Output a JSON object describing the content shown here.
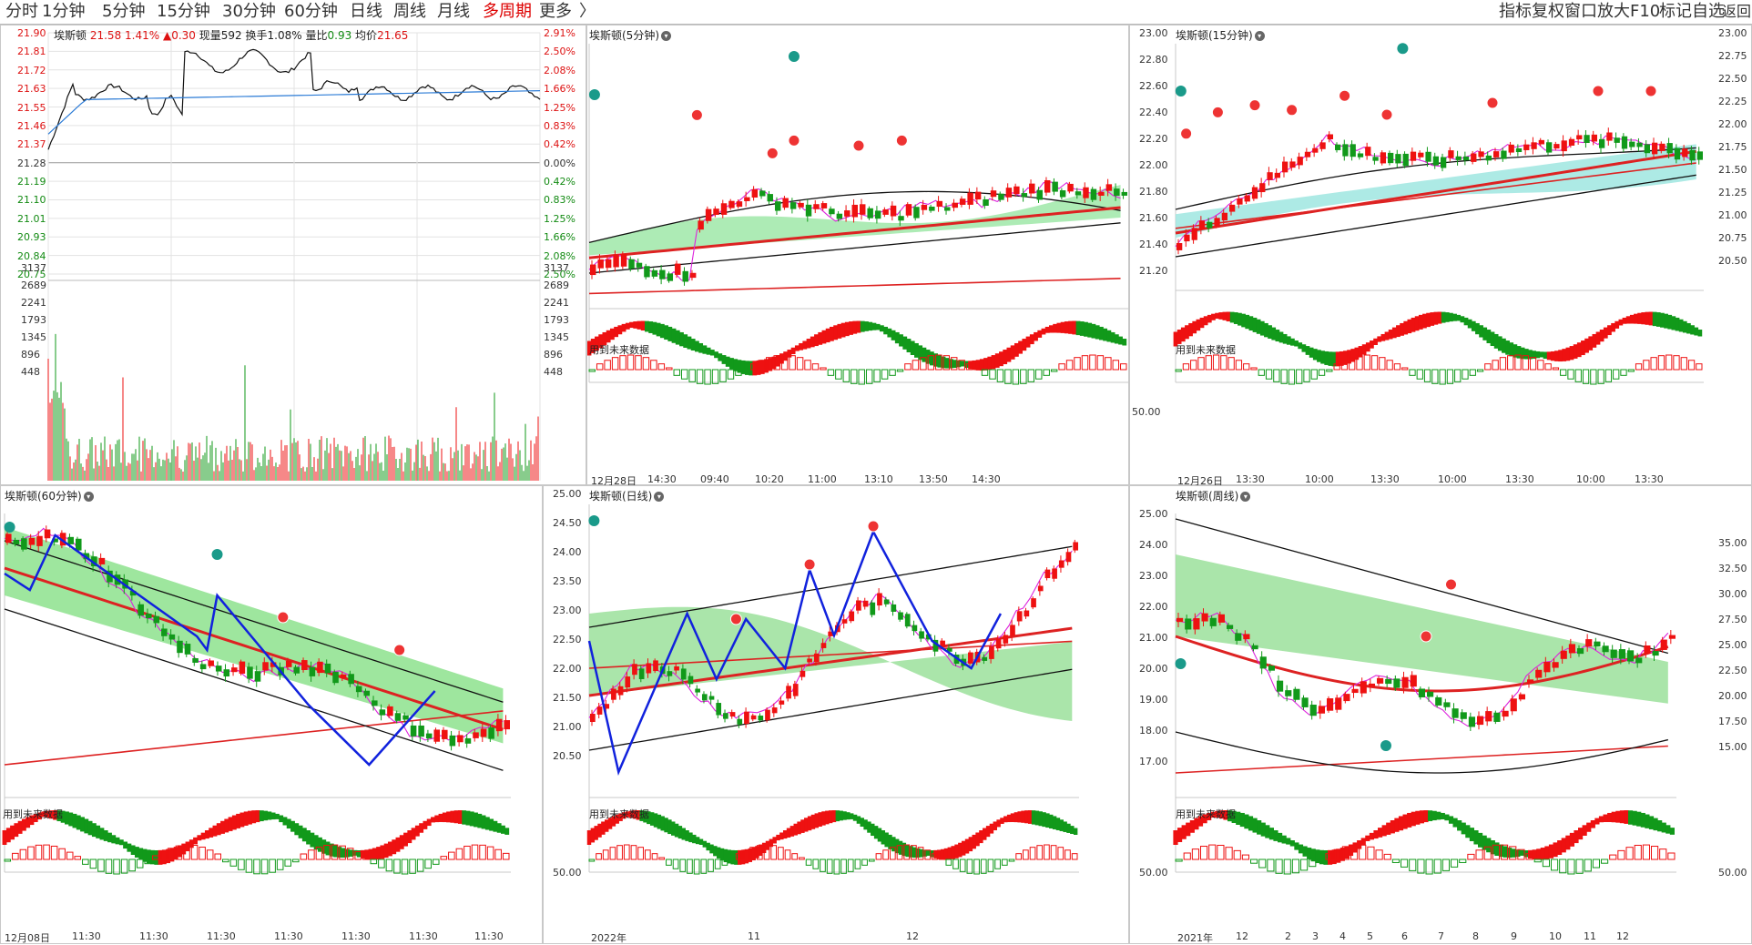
{
  "tabs": [
    {
      "label": "分时",
      "active": false
    },
    {
      "label": "1分钟",
      "active": false
    },
    {
      "label": "5分钟",
      "active": false
    },
    {
      "label": "15分钟",
      "active": false
    },
    {
      "label": "30分钟",
      "active": false
    },
    {
      "label": "60分钟",
      "active": false
    },
    {
      "label": "日线",
      "active": false
    },
    {
      "label": "周线",
      "active": false
    },
    {
      "label": "月线",
      "active": false
    },
    {
      "label": "多周期",
      "active": true
    },
    {
      "label": "更多",
      "active": false
    }
  ],
  "more_arrow": "〉",
  "tools": [
    "指标",
    "复权",
    "窗口",
    "放大",
    "F10",
    "标记",
    "自选",
    "返回"
  ],
  "intraday": {
    "name": "埃斯顿",
    "price": "21.58",
    "change_pct": "1.41%",
    "change": "▲0.30",
    "vol_label": "现量",
    "vol": "592",
    "turnover_label": "换手",
    "turnover": "1.08%",
    "ratio_label": "量比",
    "ratio": "0.93",
    "avg_label": "均价",
    "avg": "21.65",
    "price_ticks": [
      "21.90",
      "21.81",
      "21.72",
      "21.63",
      "21.55",
      "21.46",
      "21.37",
      "21.28",
      "21.19",
      "21.10",
      "21.01",
      "20.93",
      "20.84",
      "20.75"
    ],
    "pct_ticks": [
      "2.91%",
      "2.50%",
      "2.08%",
      "1.66%",
      "1.25%",
      "0.83%",
      "0.42%",
      "0.00%",
      "0.42%",
      "0.83%",
      "1.25%",
      "1.66%",
      "2.08%",
      "2.50%"
    ],
    "vol_ticks": [
      "3137",
      "2689",
      "2241",
      "1793",
      "1345",
      "896",
      "448"
    ]
  },
  "panels": {
    "m5": {
      "title": "埃斯顿(5分钟)",
      "note": "用到未来数据",
      "x_labels": [
        "12月28日",
        "14:30",
        "09:40",
        "10:20",
        "11:00",
        "13:10",
        "13:50",
        "14:30"
      ]
    },
    "m15": {
      "title": "埃斯顿(15分钟)",
      "note": "用到未来数据",
      "y_ticks": [
        "23.00",
        "22.80",
        "22.60",
        "22.40",
        "22.20",
        "22.00",
        "21.80",
        "21.60",
        "21.40",
        "21.20"
      ],
      "ind_tick": "50.00",
      "x_labels": [
        "12月26日",
        "13:30",
        "10:00",
        "13:30",
        "10:00",
        "13:30",
        "10:00",
        "13:30"
      ]
    },
    "right_axis": {
      "ticks": [
        "23.00",
        "22.75",
        "22.50",
        "22.25",
        "22.00",
        "21.75",
        "21.50",
        "21.25",
        "21.00",
        "20.75",
        "20.50"
      ]
    },
    "m60": {
      "title": "埃斯顿(60分钟)",
      "note": "用到未来数据",
      "x_labels": [
        "12月08日",
        "11:30",
        "11:30",
        "11:30",
        "11:30",
        "11:30",
        "11:30",
        "11:30"
      ]
    },
    "day": {
      "title": "埃斯顿(日线)",
      "note": "用到未来数据",
      "y_ticks": [
        "25.00",
        "24.50",
        "24.00",
        "23.50",
        "23.00",
        "22.50",
        "22.00",
        "21.50",
        "21.00",
        "20.50"
      ],
      "ind_tick": "50.00",
      "x_labels": [
        "2022年",
        "11",
        "12"
      ]
    },
    "week": {
      "title": "埃斯顿(周线)",
      "note": "用到未来数据",
      "y_ticks": [
        "25.00",
        "24.00",
        "23.00",
        "22.00",
        "21.00",
        "20.00",
        "19.00",
        "18.00",
        "17.00"
      ],
      "ind_tick": "50.00",
      "right_ticks": [
        "35.00",
        "32.50",
        "30.00",
        "27.50",
        "25.00",
        "22.50",
        "20.00",
        "17.50",
        "15.00"
      ],
      "right_ind_tick": "50.00",
      "x_labels": [
        "2021年",
        "12",
        "2",
        "3",
        "4",
        "5",
        "6",
        "7",
        "8",
        "9",
        "10",
        "11",
        "12"
      ]
    }
  },
  "colors": {
    "up": "#ee1111",
    "down": "#11991a",
    "ma": "#dd2222",
    "band_up": "#8fe08f",
    "band_dn": "#a6e6e6",
    "boll": "#111111",
    "zig": "#1122dd",
    "pink": "#dd22dd"
  }
}
